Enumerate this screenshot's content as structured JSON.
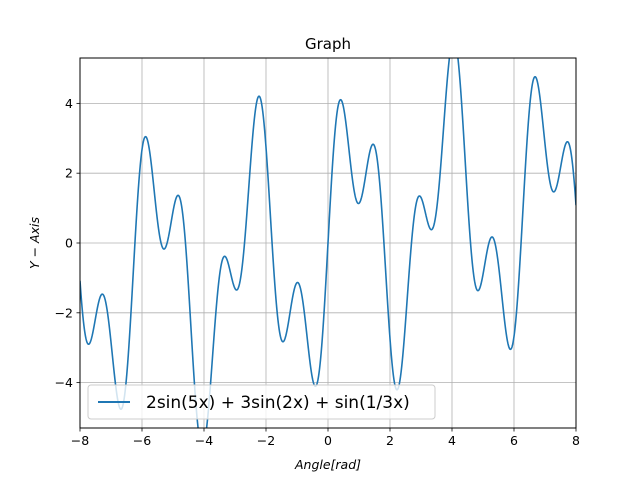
{
  "chart_data": {
    "type": "line",
    "title": "Graph",
    "xlabel": "Angle[rad]",
    "ylabel": "Y − Axis",
    "xlim": [
      -8,
      8
    ],
    "ylim": [
      -5.3,
      5.3
    ],
    "x_ticks": [
      -8,
      -6,
      -4,
      -2,
      0,
      2,
      4,
      6,
      8
    ],
    "y_ticks": [
      -4,
      -2,
      0,
      2,
      4
    ],
    "x_tick_labels": [
      "−8",
      "−6",
      "−4",
      "−2",
      "0",
      "2",
      "4",
      "6",
      "8"
    ],
    "y_tick_labels": [
      "−4",
      "−2",
      "0",
      "2",
      "4"
    ],
    "grid": true,
    "legend_position": "lower-left",
    "series": [
      {
        "name": "2sin(5x) + 3sin(2x) + sin(1/3x)",
        "color": "#1f77b4",
        "x_range": [
          -8,
          8
        ],
        "samples": 4000
      }
    ]
  }
}
